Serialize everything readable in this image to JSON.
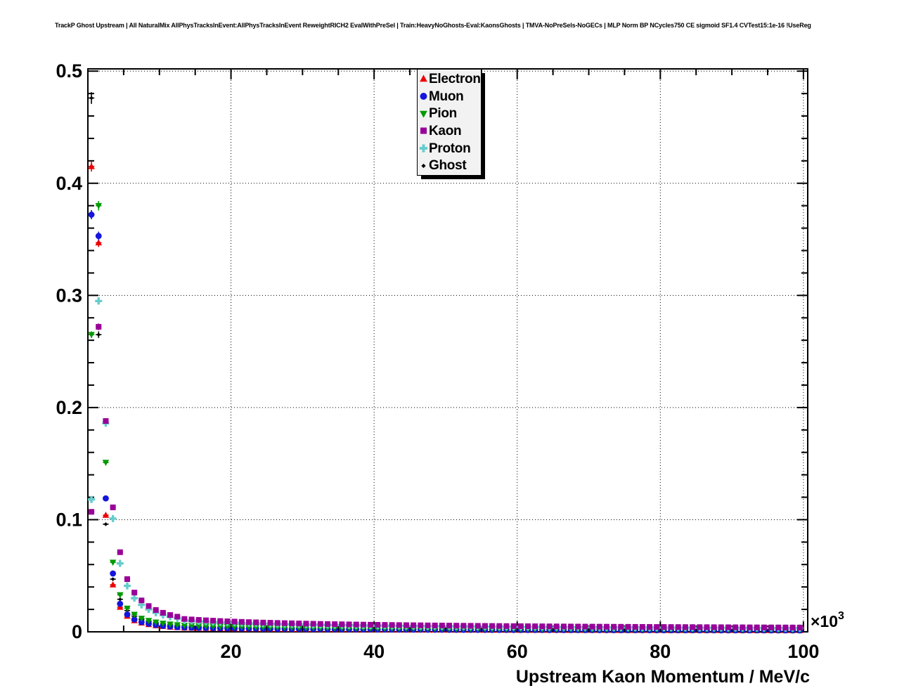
{
  "chart_data": {
    "type": "scatter",
    "title": "TrackP Ghost Upstream | All NaturalMix AllPhysTracksInEvent:AllPhysTracksInEvent ReweightRICH2 EvalWithPreSel | Train:HeavyNoGhosts-Eval:KaonsGhosts | TMVA-NoPreSels-NoGECs | MLP Norm BP NCycles750 CE sigmoid SF1.4 CVTest15:1e-16 !UseReg",
    "xlabel": "Upstream Kaon Momentum / MeV/c",
    "ylabel": "",
    "x_scale_base": "×10",
    "x_scale_exp": "3",
    "x_unit": "10^3 MeV/c",
    "xlim": [
      0,
      100.6
    ],
    "ylim": [
      0,
      0.502
    ],
    "x_ticks": [
      20,
      40,
      60,
      80,
      100
    ],
    "x_tick_labels": [
      "20",
      "40",
      "60",
      "80",
      "100"
    ],
    "y_ticks": [
      0,
      0.1,
      0.2,
      0.3,
      0.4,
      0.5
    ],
    "y_tick_labels": [
      "0",
      "0.1",
      "0.2",
      "0.3",
      "0.4",
      "0.5"
    ],
    "x_minor_step": 5,
    "y_minor_step": 0.02,
    "grid": "dotted black lines at major ticks, both axes",
    "legend_position": "top-center",
    "bins": {
      "n": 100,
      "x_start": 0.5,
      "x_step": 1,
      "half_width": 0.5
    },
    "yerr_frac": 0.011,
    "yerr_min": 0.0012,
    "draw_order": [
      "Electron",
      "Ghost",
      "Muon",
      "Pion",
      "Proton",
      "Kaon"
    ],
    "series": [
      {
        "name": "Electron",
        "marker": "triangle-up",
        "color": "#ee0000",
        "head_values": [
          0.415,
          0.347,
          0.104,
          0.042,
          0.022,
          0.014,
          0.01,
          0.008,
          0.0066,
          0.0056,
          0.0049,
          0.0043,
          0.0039
        ],
        "tail": {
          "from_x": 13.5,
          "a": 0.0145,
          "power": 0.55
        }
      },
      {
        "name": "Muon",
        "marker": "circle",
        "color": "#1515dd",
        "head_values": [
          0.372,
          0.353,
          0.119,
          0.052,
          0.025,
          0.0155,
          0.011,
          0.0087,
          0.0072,
          0.0061,
          0.0053,
          0.0047,
          0.0042
        ],
        "tail": {
          "from_x": 13.5,
          "a": 0.016,
          "power": 0.55
        }
      },
      {
        "name": "Pion",
        "marker": "triangle-down",
        "color": "#009900",
        "head_values": [
          0.265,
          0.38,
          0.151,
          0.062,
          0.033,
          0.021,
          0.0155,
          0.012,
          0.01,
          0.0086,
          0.0076,
          0.0068,
          0.0062
        ],
        "tail": {
          "from_x": 13.5,
          "a": 0.024,
          "power": 0.55
        }
      },
      {
        "name": "Kaon",
        "marker": "square",
        "color": "#990099",
        "head_values": [
          0.107,
          0.272,
          0.188,
          0.111,
          0.071,
          0.047,
          0.035,
          0.028,
          0.023,
          0.0195,
          0.017,
          0.015,
          0.0135
        ],
        "tail": {
          "from_x": 13.5,
          "a": 0.048,
          "power": 0.55
        }
      },
      {
        "name": "Proton",
        "marker": "cross",
        "color": "#66cccc",
        "head_values": [
          0.118,
          0.295,
          0.186,
          0.101,
          0.061,
          0.041,
          0.03,
          0.024,
          0.02,
          0.017,
          0.015,
          0.0133,
          0.012
        ],
        "tail": {
          "from_x": 13.5,
          "a": 0.042,
          "power": 0.55
        }
      },
      {
        "name": "Ghost",
        "marker": "diamond",
        "color": "#000000",
        "head_values": [
          0.476,
          0.265,
          0.096,
          0.047,
          0.029,
          0.019,
          0.014,
          0.011,
          0.0091,
          0.0077,
          0.0066,
          0.0058,
          0.0052
        ],
        "tail": {
          "from_x": 13.5,
          "a": 0.035,
          "power": 0.75
        }
      }
    ],
    "note": "head_values are bin contents read off the plot for the first 13 bins (x = 0.5..12.5 in 10^3 MeV/c); later bins follow v = a*x^-power, estimated from the plotted tail"
  },
  "legend": {
    "entries": [
      {
        "label": "Electron",
        "series": "Electron"
      },
      {
        "label": "Muon",
        "series": "Muon"
      },
      {
        "label": "Pion",
        "series": "Pion"
      },
      {
        "label": "Kaon",
        "series": "Kaon"
      },
      {
        "label": "Proton",
        "series": "Proton"
      },
      {
        "label": "Ghost",
        "series": "Ghost"
      }
    ]
  },
  "colors": {
    "background": "#ffffff",
    "frame_line": "#000000",
    "legend_bg": "#f2f2f2",
    "legend_shadow": "#000000"
  }
}
